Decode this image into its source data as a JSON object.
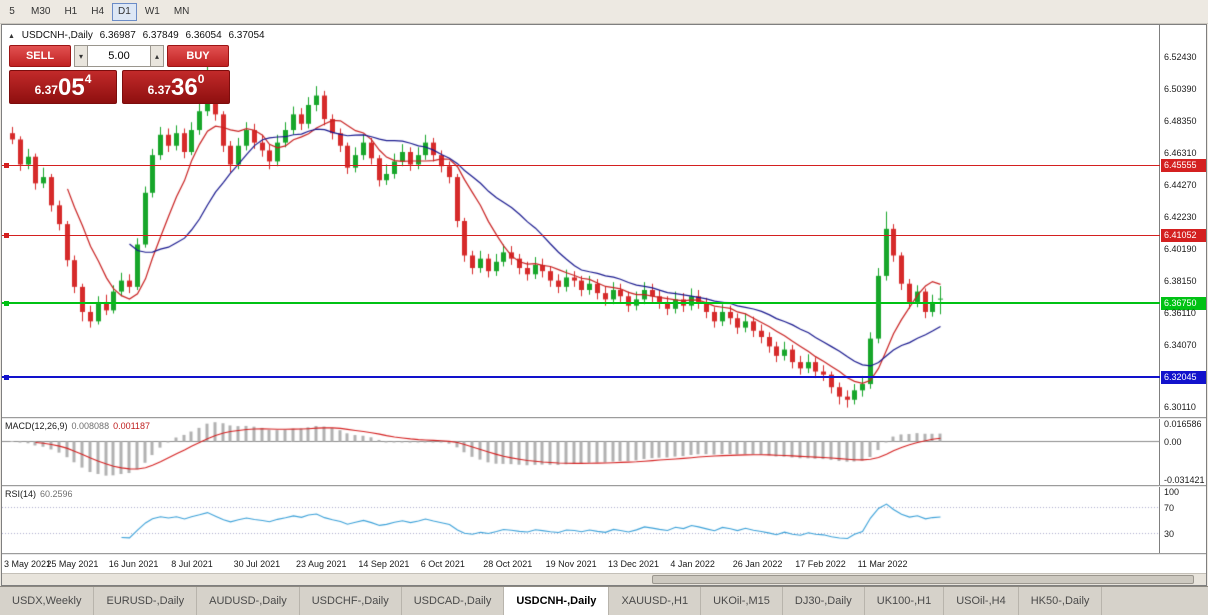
{
  "window": {
    "timeframes": [
      {
        "label": "5",
        "active": false
      },
      {
        "label": "M30",
        "active": false
      },
      {
        "label": "H1",
        "active": false
      },
      {
        "label": "H4",
        "active": false
      },
      {
        "label": "D1",
        "active": true
      },
      {
        "label": "W1",
        "active": false
      },
      {
        "label": "MN",
        "active": false
      }
    ],
    "bottom_tabs": [
      {
        "label": "USDX,Weekly",
        "active": false
      },
      {
        "label": "EURUSD-,Daily",
        "active": false
      },
      {
        "label": "AUDUSD-,Daily",
        "active": false
      },
      {
        "label": "USDCHF-,Daily",
        "active": false
      },
      {
        "label": "USDCAD-,Daily",
        "active": false
      },
      {
        "label": "USDCNH-,Daily",
        "active": true
      },
      {
        "label": "XAUUSD-,H1",
        "active": false
      },
      {
        "label": "UKOil-,M15",
        "active": false
      },
      {
        "label": "DJ30-,Daily",
        "active": false
      },
      {
        "label": "UK100-,H1",
        "active": false
      },
      {
        "label": "USOil-,H4",
        "active": false
      },
      {
        "label": "HK50-,Daily",
        "active": false
      }
    ]
  },
  "header": {
    "marker": "▲",
    "title": "USDCNH-,Daily",
    "open": "6.36987",
    "high": "6.37849",
    "low": "6.36054",
    "close": "6.37054"
  },
  "trade_panel": {
    "sell_label": "SELL",
    "buy_label": "BUY",
    "volume": "5.00",
    "step_down": "▾",
    "step_up": "▴",
    "sell_price": {
      "prefix": "6.37",
      "big": "05",
      "sup": "4"
    },
    "buy_price": {
      "prefix": "6.37",
      "big": "36",
      "sup": "0"
    }
  },
  "chart_data": {
    "type": "candlestick",
    "title": "USDCNH-,Daily",
    "y_axis": {
      "min": 6.295,
      "max": 6.545,
      "ticks": [
        "6.52430",
        "6.50390",
        "6.48350",
        "6.46310",
        "6.44270",
        "6.42230",
        "6.40190",
        "6.38150",
        "6.36110",
        "6.34070",
        "6.30110"
      ]
    },
    "x_ticks": [
      "3 May 2021",
      "25 May 2021",
      "16 Jun 2021",
      "8 Jul 2021",
      "30 Jul 2021",
      "23 Aug 2021",
      "14 Sep 2021",
      "6 Oct 2021",
      "28 Oct 2021",
      "19 Nov 2021",
      "13 Dec 2021",
      "4 Jan 2022",
      "26 Jan 2022",
      "17 Feb 2022",
      "11 Mar 2022"
    ],
    "levels": [
      {
        "price": 6.45555,
        "label": "6.45555",
        "color": "#d42020",
        "thickness": 1
      },
      {
        "price": 6.41052,
        "label": "6.41052",
        "color": "#d42020",
        "thickness": 1
      },
      {
        "price": 6.3675,
        "label": "6.36750",
        "color": "#00c214",
        "thickness": 2
      },
      {
        "price": 6.32045,
        "label": "6.32045",
        "color": "#1212cc",
        "thickness": 2
      }
    ],
    "moving_averages": [
      {
        "period": 8,
        "color": "#c82020"
      },
      {
        "period": 16,
        "color": "#18188e"
      }
    ],
    "candle_colors": {
      "up": "#17a62a",
      "down": "#d62a2a"
    },
    "candles": [
      [
        6.476,
        6.48,
        6.469,
        6.472
      ],
      [
        6.472,
        6.474,
        6.452,
        6.456
      ],
      [
        6.456,
        6.466,
        6.453,
        6.461
      ],
      [
        6.461,
        6.463,
        6.44,
        6.444
      ],
      [
        6.444,
        6.454,
        6.441,
        6.448
      ],
      [
        6.448,
        6.45,
        6.426,
        6.43
      ],
      [
        6.43,
        6.433,
        6.414,
        6.418
      ],
      [
        6.418,
        6.42,
        6.391,
        6.395
      ],
      [
        6.395,
        6.398,
        6.374,
        6.378
      ],
      [
        6.378,
        6.38,
        6.356,
        6.362
      ],
      [
        6.362,
        6.366,
        6.352,
        6.356
      ],
      [
        6.356,
        6.372,
        6.354,
        6.368
      ],
      [
        6.368,
        6.373,
        6.36,
        6.363
      ],
      [
        6.363,
        6.379,
        6.361,
        6.375
      ],
      [
        6.375,
        6.387,
        6.372,
        6.382
      ],
      [
        6.382,
        6.386,
        6.374,
        6.378
      ],
      [
        6.378,
        6.409,
        6.376,
        6.405
      ],
      [
        6.405,
        6.442,
        6.403,
        6.438
      ],
      [
        6.438,
        6.466,
        6.435,
        6.462
      ],
      [
        6.462,
        6.48,
        6.459,
        6.475
      ],
      [
        6.475,
        6.479,
        6.464,
        6.468
      ],
      [
        6.468,
        6.481,
        6.465,
        6.476
      ],
      [
        6.476,
        6.479,
        6.46,
        6.464
      ],
      [
        6.464,
        6.483,
        6.462,
        6.478
      ],
      [
        6.478,
        6.496,
        6.475,
        6.49
      ],
      [
        6.49,
        6.525,
        6.487,
        6.505
      ],
      [
        6.505,
        6.508,
        6.484,
        6.488
      ],
      [
        6.488,
        6.49,
        6.464,
        6.468
      ],
      [
        6.468,
        6.471,
        6.451,
        6.456
      ],
      [
        6.456,
        6.473,
        6.453,
        6.468
      ],
      [
        6.468,
        6.483,
        6.465,
        6.478
      ],
      [
        6.478,
        6.482,
        6.466,
        6.47
      ],
      [
        6.47,
        6.475,
        6.461,
        6.465
      ],
      [
        6.465,
        6.469,
        6.453,
        6.458
      ],
      [
        6.458,
        6.475,
        6.455,
        6.47
      ],
      [
        6.47,
        6.483,
        6.467,
        6.478
      ],
      [
        6.478,
        6.493,
        6.475,
        6.488
      ],
      [
        6.488,
        6.492,
        6.478,
        6.482
      ],
      [
        6.482,
        6.499,
        6.479,
        6.494
      ],
      [
        6.494,
        6.506,
        6.49,
        6.5
      ],
      [
        6.5,
        6.503,
        6.481,
        6.485
      ],
      [
        6.485,
        6.488,
        6.472,
        6.476
      ],
      [
        6.476,
        6.479,
        6.464,
        6.468
      ],
      [
        6.468,
        6.47,
        6.45,
        6.454
      ],
      [
        6.454,
        6.467,
        6.451,
        6.462
      ],
      [
        6.462,
        6.475,
        6.459,
        6.47
      ],
      [
        6.47,
        6.473,
        6.456,
        6.46
      ],
      [
        6.46,
        6.462,
        6.442,
        6.446
      ],
      [
        6.446,
        6.456,
        6.443,
        6.45
      ],
      [
        6.45,
        6.463,
        6.447,
        6.458
      ],
      [
        6.458,
        6.469,
        6.455,
        6.464
      ],
      [
        6.464,
        6.467,
        6.452,
        6.456
      ],
      [
        6.456,
        6.467,
        6.453,
        6.462
      ],
      [
        6.462,
        6.475,
        6.459,
        6.47
      ],
      [
        6.47,
        6.473,
        6.458,
        6.462
      ],
      [
        6.462,
        6.465,
        6.451,
        6.455
      ],
      [
        6.455,
        6.458,
        6.444,
        6.448
      ],
      [
        6.448,
        6.45,
        6.416,
        6.42
      ],
      [
        6.42,
        6.422,
        6.394,
        6.398
      ],
      [
        6.398,
        6.401,
        6.386,
        6.39
      ],
      [
        6.39,
        6.401,
        6.387,
        6.396
      ],
      [
        6.396,
        6.399,
        6.384,
        6.388
      ],
      [
        6.388,
        6.399,
        6.385,
        6.394
      ],
      [
        6.394,
        6.405,
        6.391,
        6.4
      ],
      [
        6.4,
        6.404,
        6.392,
        6.396
      ],
      [
        6.396,
        6.399,
        6.386,
        6.39
      ],
      [
        6.39,
        6.394,
        6.382,
        6.386
      ],
      [
        6.386,
        6.397,
        6.383,
        6.392
      ],
      [
        6.392,
        6.396,
        6.384,
        6.388
      ],
      [
        6.388,
        6.391,
        6.378,
        6.382
      ],
      [
        6.382,
        6.386,
        6.374,
        6.378
      ],
      [
        6.378,
        6.389,
        6.375,
        6.384
      ],
      [
        6.384,
        6.388,
        6.378,
        6.382
      ],
      [
        6.382,
        6.385,
        6.372,
        6.376
      ],
      [
        6.376,
        6.385,
        6.373,
        6.38
      ],
      [
        6.38,
        6.383,
        6.37,
        6.374
      ],
      [
        6.374,
        6.378,
        6.366,
        6.37
      ],
      [
        6.37,
        6.381,
        6.367,
        6.376
      ],
      [
        6.376,
        6.38,
        6.368,
        6.372
      ],
      [
        6.372,
        6.375,
        6.362,
        6.366
      ],
      [
        6.366,
        6.375,
        6.363,
        6.37
      ],
      [
        6.37,
        6.381,
        6.367,
        6.376
      ],
      [
        6.376,
        6.38,
        6.368,
        6.372
      ],
      [
        6.372,
        6.376,
        6.364,
        6.368
      ],
      [
        6.368,
        6.372,
        6.36,
        6.364
      ],
      [
        6.364,
        6.375,
        6.361,
        6.37
      ],
      [
        6.37,
        6.374,
        6.362,
        6.366
      ],
      [
        6.366,
        6.377,
        6.363,
        6.372
      ],
      [
        6.372,
        6.376,
        6.364,
        6.368
      ],
      [
        6.368,
        6.371,
        6.358,
        6.362
      ],
      [
        6.362,
        6.365,
        6.352,
        6.356
      ],
      [
        6.356,
        6.367,
        6.353,
        6.362
      ],
      [
        6.362,
        6.366,
        6.354,
        6.358
      ],
      [
        6.358,
        6.361,
        6.348,
        6.352
      ],
      [
        6.352,
        6.361,
        6.349,
        6.356
      ],
      [
        6.356,
        6.359,
        6.346,
        6.35
      ],
      [
        6.35,
        6.354,
        6.342,
        6.346
      ],
      [
        6.346,
        6.349,
        6.336,
        6.34
      ],
      [
        6.34,
        6.343,
        6.33,
        6.334
      ],
      [
        6.334,
        6.343,
        6.331,
        6.338
      ],
      [
        6.338,
        6.341,
        6.326,
        6.33
      ],
      [
        6.33,
        6.334,
        6.322,
        6.326
      ],
      [
        6.326,
        6.335,
        6.323,
        6.33
      ],
      [
        6.33,
        6.333,
        6.32,
        6.324
      ],
      [
        6.324,
        6.328,
        6.318,
        6.322
      ],
      [
        6.322,
        6.324,
        6.31,
        6.314
      ],
      [
        6.314,
        6.317,
        6.303,
        6.308
      ],
      [
        6.308,
        6.312,
        6.301,
        6.306
      ],
      [
        6.306,
        6.316,
        6.303,
        6.312
      ],
      [
        6.312,
        6.321,
        6.308,
        6.316
      ],
      [
        6.316,
        6.349,
        6.313,
        6.345
      ],
      [
        6.345,
        6.39,
        6.342,
        6.385
      ],
      [
        6.385,
        6.426,
        6.382,
        6.415
      ],
      [
        6.415,
        6.418,
        6.394,
        6.398
      ],
      [
        6.398,
        6.4,
        6.376,
        6.38
      ],
      [
        6.38,
        6.383,
        6.364,
        6.368
      ],
      [
        6.368,
        6.379,
        6.365,
        6.375
      ],
      [
        6.375,
        6.377,
        6.358,
        6.362
      ],
      [
        6.362,
        6.373,
        6.359,
        6.368
      ],
      [
        6.3699,
        6.3785,
        6.3605,
        6.3705
      ]
    ],
    "macd": {
      "label": "MACD(12,26,9)",
      "value_main": "0.008088",
      "value_signal": "0.001187",
      "axis": [
        "0.016586",
        "0.00",
        "-0.031421"
      ],
      "max": 0.018,
      "min": -0.036,
      "fast": 12,
      "slow": 26,
      "signal": 9,
      "bar_color": "#b2b2b2",
      "line_color": "#d42020"
    },
    "rsi": {
      "label": "RSI(14)",
      "value": "60.2596",
      "axis": [
        "100",
        "70",
        "30"
      ],
      "levels": [
        70,
        30
      ],
      "period": 14,
      "max": 100,
      "min": 0,
      "line_color": "#3aa0d8"
    }
  }
}
